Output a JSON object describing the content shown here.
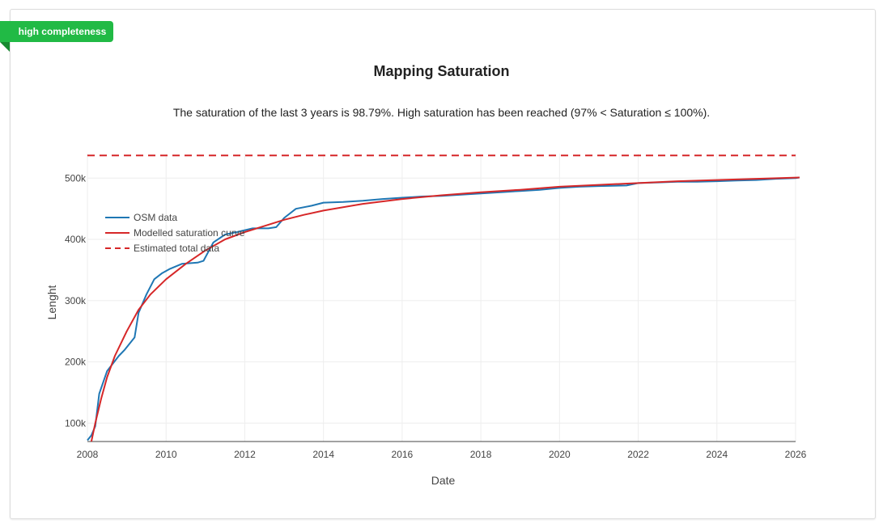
{
  "badge": {
    "label": "high completeness",
    "color": "#21ba45"
  },
  "header": {
    "title": "Mapping Saturation",
    "description": "The saturation of the last 3 years is 98.79%. High saturation has been reached (97% < Saturation ≤ 100%)."
  },
  "chart_data": {
    "type": "line",
    "xlabel": "Date",
    "ylabel": "Lenght",
    "xlim": [
      2008,
      2026
    ],
    "ylim": [
      70000,
      540000
    ],
    "x_ticks": [
      2008,
      2010,
      2012,
      2014,
      2016,
      2018,
      2020,
      2022,
      2024,
      2026
    ],
    "y_ticks": [
      100000,
      200000,
      300000,
      400000,
      500000
    ],
    "y_tick_labels": [
      "100k",
      "200k",
      "300k",
      "400k",
      "500k"
    ],
    "grid": true,
    "legend": {
      "placement": "top-left"
    },
    "series": [
      {
        "name": "OSM data",
        "color": "#1f77b4",
        "dash": "solid",
        "x": [
          2008.0,
          2008.1,
          2008.2,
          2008.3,
          2008.5,
          2008.8,
          2008.95,
          2009.2,
          2009.3,
          2009.5,
          2009.7,
          2009.9,
          2010.1,
          2010.4,
          2010.8,
          2010.95,
          2011.2,
          2011.5,
          2011.8,
          2012.2,
          2012.6,
          2012.8,
          2013.0,
          2013.3,
          2013.7,
          2014.0,
          2014.5,
          2015.0,
          2015.5,
          2016.0,
          2016.5,
          2017.0,
          2017.5,
          2018.0,
          2018.5,
          2019.0,
          2019.5,
          2020.0,
          2020.5,
          2021.0,
          2021.7,
          2022.0,
          2022.5,
          2023.0,
          2023.5,
          2024.0,
          2024.5,
          2025.0,
          2025.5,
          2026.0,
          2026.1
        ],
        "y": [
          72000,
          80000,
          95000,
          148000,
          185000,
          210000,
          220000,
          240000,
          280000,
          310000,
          335000,
          345000,
          352000,
          360000,
          362000,
          365000,
          395000,
          408000,
          412000,
          418000,
          418000,
          420000,
          435000,
          450000,
          455000,
          460000,
          461000,
          463000,
          466000,
          468000,
          470000,
          471000,
          473000,
          475000,
          477000,
          479000,
          481000,
          484000,
          486000,
          487000,
          488000,
          492000,
          493000,
          494000,
          494000,
          495000,
          496000,
          497000,
          499000,
          500000,
          501000
        ]
      },
      {
        "name": "Modelled saturation curve",
        "color": "#d62728",
        "dash": "solid",
        "x": [
          2008.1,
          2008.2,
          2008.35,
          2008.5,
          2008.7,
          2009.0,
          2009.3,
          2009.6,
          2010.0,
          2010.5,
          2011.0,
          2011.5,
          2012.0,
          2012.5,
          2013.0,
          2013.5,
          2014.0,
          2015.0,
          2016.0,
          2017.0,
          2018.0,
          2019.0,
          2020.0,
          2021.0,
          2022.0,
          2023.0,
          2024.0,
          2025.0,
          2026.1
        ],
        "y": [
          70000,
          100000,
          140000,
          175000,
          210000,
          250000,
          285000,
          310000,
          335000,
          360000,
          382000,
          400000,
          412000,
          422000,
          432000,
          440000,
          447000,
          458000,
          466000,
          472000,
          477000,
          481000,
          486000,
          489000,
          492000,
          495000,
          497000,
          499000,
          501000
        ]
      },
      {
        "name": "Estimated total data",
        "color": "#d62728",
        "dash": "dashed",
        "x": [
          2008.0,
          2026.0
        ],
        "y": [
          537000,
          537000
        ]
      }
    ]
  }
}
